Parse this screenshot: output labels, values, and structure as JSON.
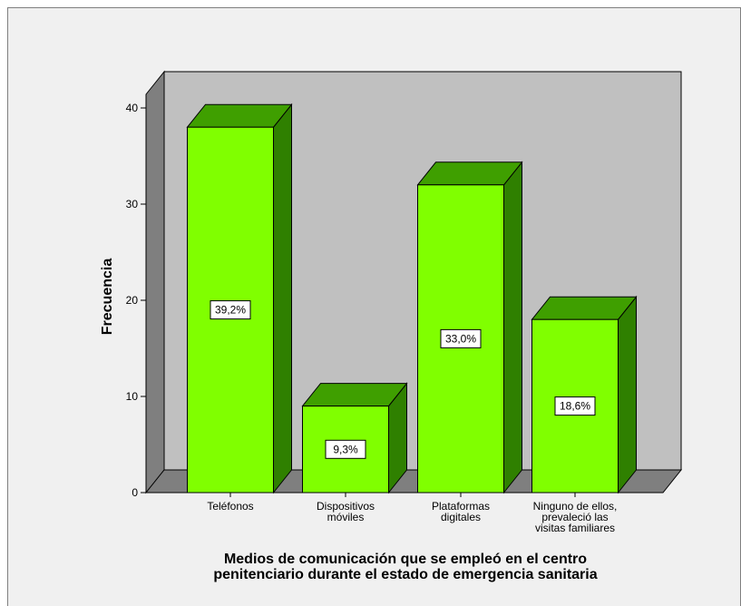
{
  "chart_data": {
    "type": "bar",
    "style": "3d",
    "categories": [
      [
        "Teléfonos"
      ],
      [
        "Dispositivos",
        "móviles"
      ],
      [
        "Plataformas",
        "digitales"
      ],
      [
        "Ninguno de ellos,",
        "prevaleció las",
        "visitas familiares"
      ]
    ],
    "values": [
      38,
      9,
      32,
      18
    ],
    "data_labels": [
      "39,2%",
      "9,3%",
      "33,0%",
      "18,6%"
    ],
    "ylabel": "Frecuencia",
    "xlabel": [
      "Medios de comunicación que se empleó en el centro",
      "penitenciario durante el estado de emergencia sanitaria"
    ],
    "ylim": [
      0,
      40
    ],
    "yticks": [
      "0",
      "10",
      "20",
      "30",
      "40"
    ],
    "grid": false,
    "colors": {
      "bar_front": "#80ff00",
      "bar_top": "#3f9f00",
      "bar_side": "#2f8000",
      "back_wall": "#c0c0c0",
      "side_wall": "#7f7f7f",
      "floor": "#7f7f7f"
    }
  }
}
